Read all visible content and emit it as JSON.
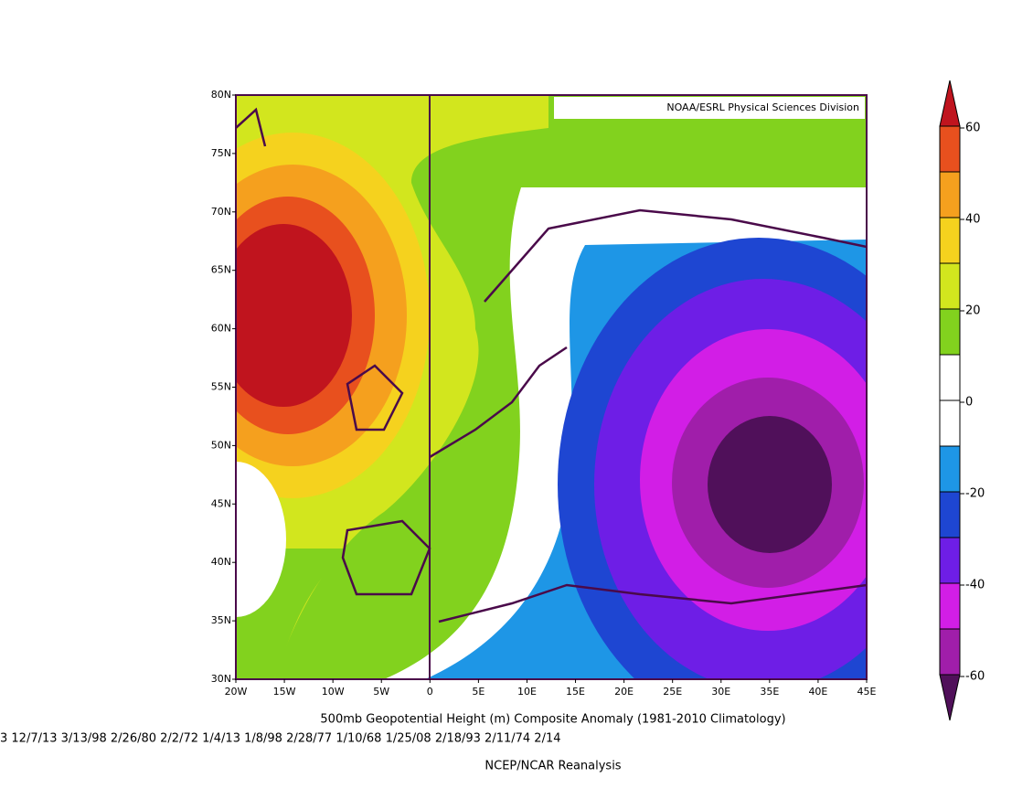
{
  "map": {
    "credit": "NOAA/ESRL Physical Sciences Division",
    "lonlim": [
      -20,
      45
    ],
    "latlim": [
      30,
      80
    ],
    "lon_ticks": [
      {
        "value": -20,
        "label": "20W"
      },
      {
        "value": -15,
        "label": "15W"
      },
      {
        "value": -10,
        "label": "10W"
      },
      {
        "value": -5,
        "label": "5W"
      },
      0,
      {
        "value": 5,
        "label": "5E"
      },
      {
        "value": 10,
        "label": "10E"
      },
      {
        "value": 15,
        "label": "15E"
      },
      {
        "value": 20,
        "label": "20E"
      },
      {
        "value": 25,
        "label": "25E"
      },
      {
        "value": 30,
        "label": "30E"
      },
      {
        "value": 35,
        "label": "35E"
      },
      {
        "value": 40,
        "label": "40E"
      },
      {
        "value": 45,
        "label": "45E"
      }
    ],
    "lat_ticks": [
      {
        "value": 80,
        "label": "80N"
      },
      {
        "value": 75,
        "label": "75N"
      },
      {
        "value": 70,
        "label": "70N"
      },
      {
        "value": 65,
        "label": "65N"
      },
      {
        "value": 60,
        "label": "60N"
      },
      {
        "value": 55,
        "label": "55N"
      },
      {
        "value": 50,
        "label": "50N"
      },
      {
        "value": 45,
        "label": "45N"
      },
      {
        "value": 40,
        "label": "40N"
      },
      {
        "value": 35,
        "label": "35N"
      },
      {
        "value": 30,
        "label": "30N"
      }
    ]
  },
  "colorbar": {
    "ticks": [
      60,
      40,
      20,
      0,
      -20,
      -40,
      -60
    ],
    "colors": [
      "#c0141e",
      "#e8501e",
      "#f5a01e",
      "#f5d21e",
      "#d2e61e",
      "#82d21e",
      "#ffffff",
      "#ffffff",
      "#1e96e6",
      "#1e46d2",
      "#6e1ee6",
      "#d21ee6",
      "#a01eaa",
      "#50105a"
    ]
  },
  "caption": {
    "title": "500mb Geopotential Height (m) Composite Anomaly (1981-2010 Climatology)",
    "dates": "3 12/7/13 3/13/98 2/26/80 2/2/72 1/4/13 1/8/98 2/28/77 1/10/68 1/25/08 2/18/93 2/11/74 2/14",
    "source": "NCEP/NCAR Reanalysis"
  }
}
